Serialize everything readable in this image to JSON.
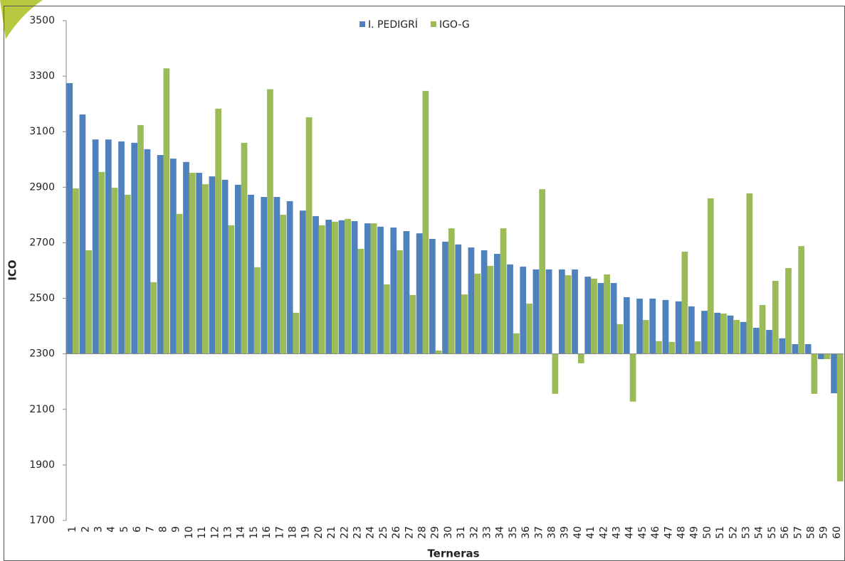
{
  "chart_data": {
    "type": "bar",
    "x_label": "Terneras",
    "y_label": "ICO",
    "categories": [
      "1",
      "2",
      "3",
      "4",
      "5",
      "6",
      "7",
      "8",
      "9",
      "10",
      "11",
      "12",
      "13",
      "14",
      "15",
      "16",
      "17",
      "18",
      "19",
      "20",
      "21",
      "22",
      "23",
      "24",
      "25",
      "26",
      "27",
      "28",
      "29",
      "30",
      "31",
      "32",
      "33",
      "34",
      "35",
      "36",
      "37",
      "38",
      "39",
      "40",
      "41",
      "42",
      "43",
      "44",
      "45",
      "46",
      "47",
      "48",
      "49",
      "50",
      "51",
      "52",
      "53",
      "54",
      "55",
      "56",
      "57",
      "58",
      "59",
      "60"
    ],
    "series": [
      {
        "name": "I. PEDIGRÍ",
        "color": "#4f81bd",
        "values": [
          3275,
          3162,
          3072,
          3072,
          3065,
          3060,
          3037,
          3016,
          3003,
          2991,
          2952,
          2939,
          2927,
          2909,
          2873,
          2865,
          2865,
          2850,
          2816,
          2796,
          2783,
          2781,
          2778,
          2770,
          2758,
          2755,
          2742,
          2734,
          2714,
          2704,
          2694,
          2683,
          2673,
          2660,
          2622,
          2614,
          2604,
          2604,
          2604,
          2604,
          2578,
          2555,
          2555,
          2504,
          2499,
          2499,
          2494,
          2489,
          2471,
          2455,
          2448,
          2438,
          2415,
          2394,
          2386,
          2356,
          2335,
          2335,
          2281,
          2158
        ]
      },
      {
        "name": "IGO-G",
        "color": "#9bbb59",
        "values": [
          2896,
          2673,
          2955,
          2898,
          2873,
          3124,
          2558,
          3328,
          2804,
          2952,
          2911,
          3183,
          2763,
          3060,
          2612,
          3253,
          2801,
          2448,
          3152,
          2763,
          2776,
          2786,
          2678,
          2770,
          2550,
          2673,
          2512,
          3247,
          2312,
          2752,
          2514,
          2589,
          2617,
          2752,
          2374,
          2481,
          2893,
          2156,
          2583,
          2266,
          2571,
          2586,
          2407,
          2128,
          2422,
          2346,
          2343,
          2668,
          2345,
          2860,
          2445,
          2422,
          2878,
          2476,
          2563,
          2609,
          2688,
          2156,
          2281,
          1841
        ]
      }
    ],
    "ylim": [
      1700,
      3500
    ],
    "yticks": [
      1700,
      1900,
      2100,
      2300,
      2500,
      2700,
      2900,
      3100,
      3300,
      3500
    ],
    "x_axis_at": 2300,
    "grid": false,
    "legend": "top"
  }
}
